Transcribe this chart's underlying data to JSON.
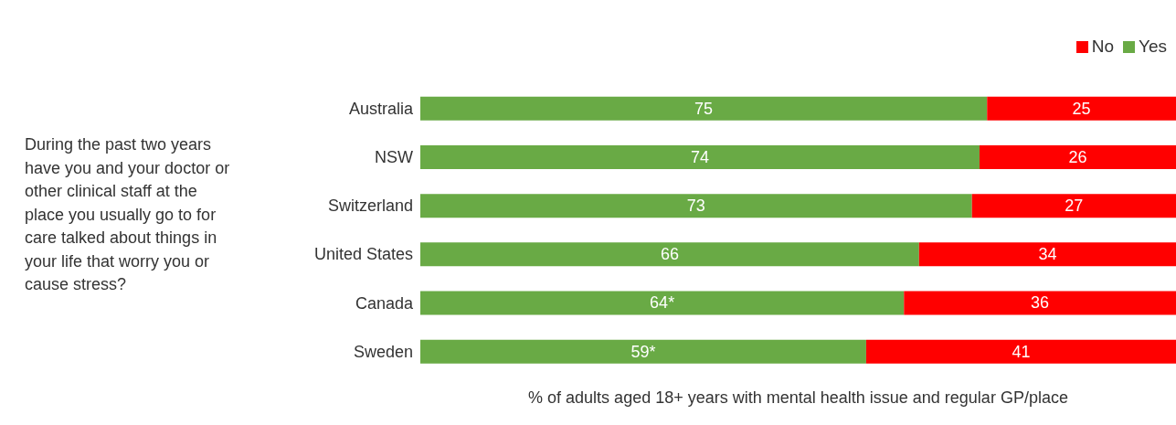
{
  "chart_data": {
    "type": "bar",
    "orientation": "horizontal",
    "stacked": true,
    "categories": [
      "Australia",
      "NSW",
      "Switzerland",
      "United States",
      "Canada",
      "Sweden"
    ],
    "series": [
      {
        "name": "Yes",
        "color": "#69aa45",
        "values": [
          75,
          74,
          73,
          66,
          64,
          59
        ],
        "value_labels": [
          "75",
          "74",
          "73",
          "66",
          "64*",
          "59*"
        ]
      },
      {
        "name": "No",
        "color": "#ff0000",
        "values": [
          25,
          26,
          27,
          34,
          36,
          41
        ],
        "value_labels": [
          "25",
          "26",
          "27",
          "34",
          "36",
          "41"
        ]
      }
    ],
    "xlim": [
      0,
      100
    ],
    "tick_labels": "y",
    "legend": "top right",
    "grid": false,
    "xlabel": "% of adults aged 18+ years with mental health issue and regular GP/place",
    "annotations": [
      "During the past two years have you and your doctor or other clinical staff at the place you usually go to for care talked about things in your life that worry you or cause stress?"
    ]
  }
}
